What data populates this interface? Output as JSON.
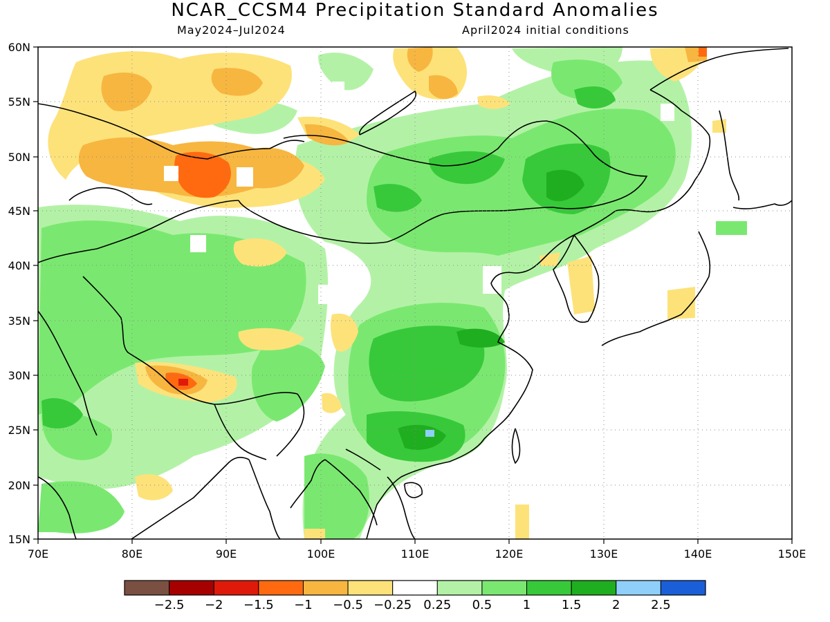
{
  "title": "NCAR_CCSM4 Precipitation Standard Anomalies",
  "subtitle_left": "May2024–Jul2024",
  "subtitle_right": "April2024 initial conditions",
  "map": {
    "lon_range": [
      70,
      150
    ],
    "lat_range": [
      15,
      60
    ],
    "lon_ticks": [
      "70E",
      "80E",
      "90E",
      "100E",
      "110E",
      "120E",
      "130E",
      "140E",
      "150E"
    ],
    "lat_ticks": [
      "60N",
      "55N",
      "50N",
      "45N",
      "40N",
      "35N",
      "30N",
      "25N",
      "20N",
      "15N"
    ],
    "grid": "dotted"
  },
  "colorbar": {
    "colors": [
      "#7a5043",
      "#a60000",
      "#e01a0a",
      "#ff6a10",
      "#f7b640",
      "#fde27a",
      "#ffffff",
      "#b3f2a6",
      "#7ae870",
      "#38c93a",
      "#1fae1f",
      "#8fd0fb",
      "#1a5fd8"
    ],
    "labels": [
      "−2.5",
      "−2",
      "−1.5",
      "−1",
      "−0.5",
      "−0.25",
      "0.25",
      "0.5",
      "1",
      "1.5",
      "2",
      "2.5"
    ]
  }
}
